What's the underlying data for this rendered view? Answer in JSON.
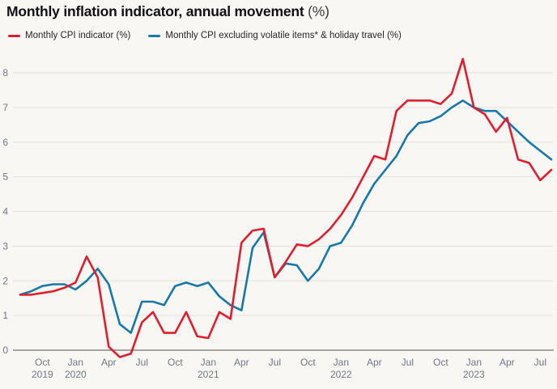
{
  "title": {
    "main": "Monthly inflation indicator, annual movement",
    "suffix": "(%)"
  },
  "legend": [
    {
      "label": "Monthly CPI indicator (%)",
      "color": "#e01f2d"
    },
    {
      "label": "Monthly CPI excluding volatile items* & holiday travel (%)",
      "color": "#1778a9"
    }
  ],
  "colors": {
    "background": "#f9f7f3",
    "gridline": "#e3e1dc",
    "zero_line": "#717171",
    "axis_text": "#6e7787",
    "red_series": "#e01f2d",
    "blue_series": "#1778a9"
  },
  "chart_data": {
    "type": "line",
    "title": "Monthly inflation indicator, annual movement (%)",
    "xlabel": "",
    "ylabel": "",
    "ylim": [
      -0.6,
      8.6
    ],
    "grid": "horizontal",
    "legend_position": "top-left",
    "x": [
      "Aug 2019",
      "Sep 2019",
      "Oct 2019",
      "Nov 2019",
      "Dec 2019",
      "Jan 2020",
      "Feb 2020",
      "Mar 2020",
      "Apr 2020",
      "May 2020",
      "Jun 2020",
      "Jul 2020",
      "Aug 2020",
      "Sep 2020",
      "Oct 2020",
      "Nov 2020",
      "Dec 2020",
      "Jan 2021",
      "Feb 2021",
      "Mar 2021",
      "Apr 2021",
      "May 2021",
      "Jun 2021",
      "Jul 2021",
      "Aug 2021",
      "Sep 2021",
      "Oct 2021",
      "Nov 2021",
      "Dec 2021",
      "Jan 2022",
      "Feb 2022",
      "Mar 2022",
      "Apr 2022",
      "May 2022",
      "Jun 2022",
      "Jul 2022",
      "Aug 2022",
      "Sep 2022",
      "Oct 2022",
      "Nov 2022",
      "Dec 2022",
      "Jan 2023",
      "Feb 2023",
      "Mar 2023",
      "Apr 2023",
      "May 2023",
      "Jun 2023",
      "Jul 2023",
      "Aug 2023"
    ],
    "series": [
      {
        "name": "Monthly CPI indicator (%)",
        "color": "#e01f2d",
        "values": [
          1.6,
          1.6,
          1.65,
          1.7,
          1.8,
          1.95,
          2.7,
          2.1,
          0.1,
          -0.2,
          -0.1,
          0.8,
          1.1,
          0.5,
          0.5,
          1.1,
          0.4,
          0.35,
          1.1,
          0.9,
          3.1,
          3.45,
          3.5,
          2.1,
          2.55,
          3.05,
          3.0,
          3.2,
          3.5,
          3.9,
          4.4,
          5.0,
          5.6,
          5.5,
          6.9,
          7.2,
          7.2,
          7.2,
          7.1,
          7.4,
          8.4,
          7.0,
          6.8,
          6.3,
          6.7,
          5.5,
          5.4,
          4.9,
          5.2
        ]
      },
      {
        "name": "Monthly CPI excluding volatile items* & holiday travel (%)",
        "color": "#1778a9",
        "values": [
          1.6,
          1.7,
          1.85,
          1.9,
          1.9,
          1.75,
          2.0,
          2.35,
          1.9,
          0.75,
          0.5,
          1.4,
          1.4,
          1.3,
          1.85,
          1.95,
          1.85,
          1.95,
          1.55,
          1.3,
          1.15,
          2.95,
          3.4,
          2.1,
          2.5,
          2.45,
          2.0,
          2.35,
          3.0,
          3.1,
          3.6,
          4.25,
          4.8,
          5.2,
          5.6,
          6.2,
          6.55,
          6.6,
          6.75,
          7.0,
          7.2,
          7.0,
          6.9,
          6.9,
          6.6,
          6.3,
          6.0,
          5.75,
          5.5
        ]
      }
    ],
    "y_ticks": [
      0,
      1,
      2,
      3,
      4,
      5,
      6,
      7,
      8
    ],
    "x_ticks": [
      {
        "month_index": 2,
        "label": "Oct",
        "year": "2019"
      },
      {
        "month_index": 5,
        "label": "Jan",
        "year": "2020"
      },
      {
        "month_index": 8,
        "label": "Apr",
        "year": ""
      },
      {
        "month_index": 11,
        "label": "Jul",
        "year": ""
      },
      {
        "month_index": 14,
        "label": "Oct",
        "year": ""
      },
      {
        "month_index": 17,
        "label": "Jan",
        "year": "2021"
      },
      {
        "month_index": 20,
        "label": "Apr",
        "year": ""
      },
      {
        "month_index": 23,
        "label": "Jul",
        "year": ""
      },
      {
        "month_index": 26,
        "label": "Oct",
        "year": ""
      },
      {
        "month_index": 29,
        "label": "Jan",
        "year": "2022"
      },
      {
        "month_index": 32,
        "label": "Apr",
        "year": ""
      },
      {
        "month_index": 35,
        "label": "Jul",
        "year": ""
      },
      {
        "month_index": 38,
        "label": "Oct",
        "year": ""
      },
      {
        "month_index": 41,
        "label": "Jan",
        "year": "2023"
      },
      {
        "month_index": 44,
        "label": "Apr",
        "year": ""
      },
      {
        "month_index": 47,
        "label": "Jul",
        "year": ""
      }
    ]
  }
}
